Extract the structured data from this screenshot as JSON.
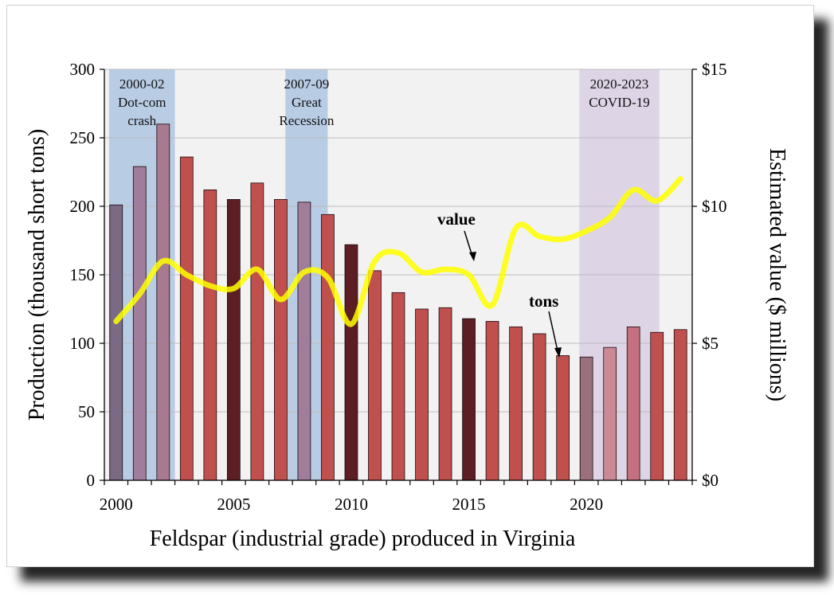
{
  "chart_data": {
    "type": "bar+line",
    "title": "Feldspar (industrial grade) produced in Virginia",
    "xlabel": "Feldspar (industrial grade) produced in Virginia",
    "ylabel_left": "Production (thousand short tons)",
    "ylabel_right": "Estimated value ($ millions)",
    "ylim_left": [
      0,
      300
    ],
    "ylim_right": [
      0,
      15
    ],
    "yticks_left": [
      "0",
      "50",
      "100",
      "150",
      "200",
      "250",
      "300"
    ],
    "yticks_right": [
      "$0",
      "$5",
      "$10",
      "$15"
    ],
    "xticks": [
      "2000",
      "2005",
      "2010",
      "2015",
      "2020"
    ],
    "years": [
      2000,
      2001,
      2002,
      2003,
      2004,
      2005,
      2006,
      2007,
      2008,
      2009,
      2010,
      2011,
      2012,
      2013,
      2014,
      2015,
      2016,
      2017,
      2018,
      2019,
      2020,
      2021,
      2022,
      2023,
      2024
    ],
    "series": [
      {
        "name": "tons",
        "label": "tons",
        "axis": "left",
        "values": [
          201,
          229,
          260,
          236,
          212,
          205,
          217,
          205,
          203,
          194,
          172,
          153,
          137,
          125,
          126,
          118,
          116,
          112,
          107,
          91,
          90,
          97,
          112,
          108,
          110
        ]
      },
      {
        "name": "value",
        "label": "value",
        "axis": "right",
        "values": [
          5.8,
          6.8,
          8.0,
          7.5,
          7.1,
          7.0,
          7.7,
          6.6,
          7.6,
          7.4,
          5.7,
          8.0,
          8.3,
          7.6,
          7.7,
          7.5,
          6.4,
          9.2,
          8.9,
          8.8,
          9.1,
          9.6,
          10.6,
          10.2,
          11.0
        ]
      }
    ],
    "bar_colors": [
      "#7a6a85",
      "#a07d9a",
      "#a87a90",
      "#c0504d",
      "#c0504d",
      "#5c1e22",
      "#c0504d",
      "#c0504d",
      "#a07d9a",
      "#c0504d",
      "#5c1e22",
      "#c0504d",
      "#c0504d",
      "#c0504d",
      "#c0504d",
      "#5c1e22",
      "#c0504d",
      "#c0504d",
      "#c0504d",
      "#c0504d",
      "#9a707c",
      "#c98a96",
      "#c4707f",
      "#c0504d",
      "#c0504d"
    ],
    "line_color": "#ffff00",
    "plot_background": "#f2f2f2",
    "shaded_periods": [
      {
        "start": 1999.7,
        "end": 2002.5,
        "lines": [
          "2000-02",
          "Dot-com",
          "crash"
        ],
        "color": "#b8cce4"
      },
      {
        "start": 2007.2,
        "end": 2009.0,
        "lines": [
          "2007-09",
          "Great",
          "Recession"
        ],
        "color": "#b8cce4"
      },
      {
        "start": 2019.7,
        "end": 2023.1,
        "lines": [
          "2020-2023",
          "COVID-19"
        ],
        "color": "#ddd4e6"
      }
    ]
  }
}
